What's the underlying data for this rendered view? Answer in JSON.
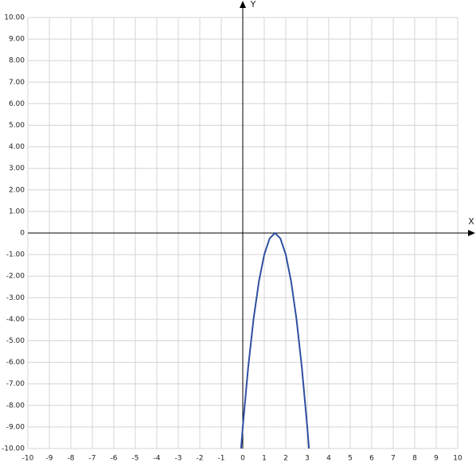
{
  "chart_data": {
    "type": "line",
    "x_label": "X",
    "y_label": "Y",
    "x": [
      -0.08,
      0,
      0.25,
      0.5,
      0.75,
      1,
      1.25,
      1.5,
      1.75,
      2,
      2.25,
      2.5,
      2.75,
      3,
      3.08
    ],
    "series": [
      {
        "color": "#2e4fa0",
        "values": [
          -10,
          -9,
          -6.25,
          -4,
          -2.25,
          -1,
          -0.25,
          0,
          -0.25,
          -1,
          -2.25,
          -4,
          -6.25,
          -9,
          -10
        ]
      }
    ],
    "xlim": [
      -10,
      10
    ],
    "xticks": [
      -10,
      -9,
      -8,
      -7,
      -6,
      -5,
      -4,
      -3,
      -2,
      -1,
      0,
      1,
      2,
      3,
      4,
      5,
      6,
      7,
      8,
      9,
      10
    ],
    "ylim": [
      -10,
      10
    ],
    "yticks": [
      {
        "value": 10,
        "label": "10.00"
      },
      {
        "value": 9,
        "label": "9.00"
      },
      {
        "value": 8,
        "label": "8.00"
      },
      {
        "value": 7,
        "label": "7.00"
      },
      {
        "value": 6,
        "label": "6.00"
      },
      {
        "value": 5,
        "label": "5.00"
      },
      {
        "value": 4,
        "label": "4.00"
      },
      {
        "value": 3,
        "label": "3.00"
      },
      {
        "value": 2,
        "label": "2.00"
      },
      {
        "value": 1,
        "label": "1.00"
      },
      0,
      {
        "value": -1,
        "label": "-1.00"
      },
      {
        "value": -2,
        "label": "-2.00"
      },
      {
        "value": -3,
        "label": "-3.00"
      },
      {
        "value": -4,
        "label": "-4.00"
      },
      {
        "value": -5,
        "label": "-5.00"
      },
      {
        "value": -6,
        "label": "-6.00"
      },
      {
        "value": -7,
        "label": "-7.00"
      },
      {
        "value": -8,
        "label": "-8.00"
      },
      {
        "value": -9,
        "label": "-9.00"
      },
      {
        "value": -10,
        "label": "-10.00"
      }
    ],
    "grid": true
  }
}
